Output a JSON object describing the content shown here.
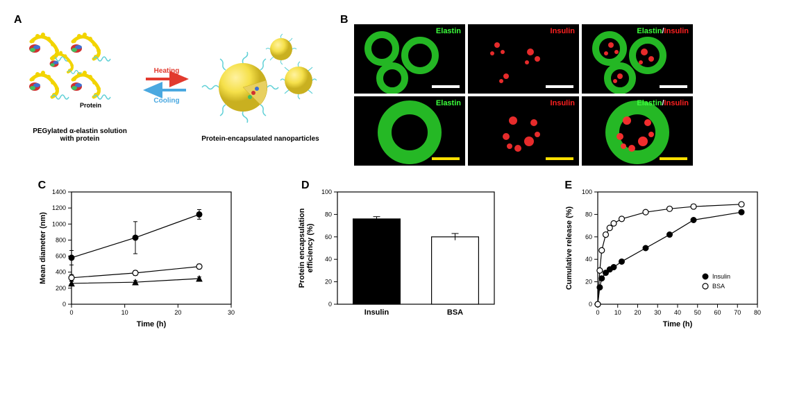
{
  "panelA": {
    "label": "A",
    "left_caption": "PEGylated α-elastin solution\nwith protein",
    "right_caption": "Protein-encapsulated nanoparticles",
    "protein_label": "Protein",
    "heating_label": "Heating",
    "cooling_label": "Cooling",
    "colors": {
      "elastin_chain": "#f2d400",
      "peg_tail": "#5fd0d6",
      "heating_arrow": "#e23a2e",
      "cooling_arrow": "#4aa8e0",
      "sphere_fill": "#f5e04a",
      "sphere_shadow": "#c9b020"
    }
  },
  "panelB": {
    "label": "B",
    "labels_row1": [
      "Elastin",
      "Insulin",
      "Elastin/Insulin"
    ],
    "labels_row2": [
      "Elastin",
      "Insulin",
      "Elastin/Insulin"
    ],
    "colors": {
      "elastin_text": "#3cff3c",
      "insulin_text": "#ff2020",
      "bg": "#000000",
      "green": "#2bd82b",
      "red": "#ff3030",
      "scale_white": "#ffffff",
      "scale_yellow": "#ffe000"
    }
  },
  "panelC": {
    "label": "C",
    "type": "line",
    "xlabel": "Time (h)",
    "ylabel": "Mean diameter (nm)",
    "xlim": [
      0,
      30
    ],
    "ylim": [
      0,
      1400
    ],
    "xticks": [
      0,
      10,
      20,
      30
    ],
    "yticks": [
      0,
      200,
      400,
      600,
      800,
      1000,
      1200,
      1400
    ],
    "series": [
      {
        "marker": "filled-circle",
        "color": "#000000",
        "x": [
          0,
          12,
          24
        ],
        "y": [
          580,
          830,
          1120
        ],
        "yerr": [
          90,
          200,
          60
        ]
      },
      {
        "marker": "open-circle",
        "color": "#000000",
        "x": [
          0,
          12,
          24
        ],
        "y": [
          330,
          390,
          470
        ],
        "yerr": [
          40,
          30,
          30
        ]
      },
      {
        "marker": "filled-triangle",
        "color": "#000000",
        "x": [
          0,
          12,
          24
        ],
        "y": [
          260,
          275,
          320
        ],
        "yerr": [
          25,
          20,
          20
        ]
      }
    ],
    "label_fontsize": 11,
    "tick_fontsize": 9,
    "line_width": 1.2
  },
  "panelD": {
    "label": "D",
    "type": "bar",
    "xlabel": "",
    "ylabel": "Protein encapsulation\nefficiency (%)",
    "categories": [
      "Insulin",
      "BSA"
    ],
    "values": [
      76,
      60
    ],
    "yerr": [
      2,
      3
    ],
    "bar_colors": [
      "#000000",
      "#ffffff"
    ],
    "bar_border": "#000000",
    "ylim": [
      0,
      100
    ],
    "yticks": [
      0,
      20,
      40,
      60,
      80,
      100
    ],
    "label_fontsize": 11,
    "tick_fontsize": 9,
    "bar_width": 0.6
  },
  "panelE": {
    "label": "E",
    "type": "line",
    "xlabel": "Time (h)",
    "ylabel": "Cumulative release (%)",
    "xlim": [
      0,
      80
    ],
    "ylim": [
      0,
      100
    ],
    "xticks": [
      0,
      10,
      20,
      30,
      40,
      50,
      60,
      70,
      80
    ],
    "yticks": [
      0,
      20,
      40,
      60,
      80,
      100
    ],
    "series": [
      {
        "name": "Insulin",
        "marker": "filled-circle",
        "color": "#000000",
        "x": [
          0,
          1,
          2,
          4,
          6,
          8,
          12,
          24,
          36,
          48,
          72
        ],
        "y": [
          0,
          15,
          23,
          28,
          31,
          33,
          38,
          50,
          62,
          75,
          82
        ]
      },
      {
        "name": "BSA",
        "marker": "open-circle",
        "color": "#000000",
        "x": [
          0,
          1,
          2,
          4,
          6,
          8,
          12,
          24,
          36,
          48,
          72
        ],
        "y": [
          0,
          30,
          48,
          62,
          68,
          72,
          76,
          82,
          85,
          87,
          89
        ]
      }
    ],
    "legend_items": [
      "Insulin",
      "BSA"
    ],
    "label_fontsize": 11,
    "tick_fontsize": 9,
    "line_width": 1.2
  }
}
